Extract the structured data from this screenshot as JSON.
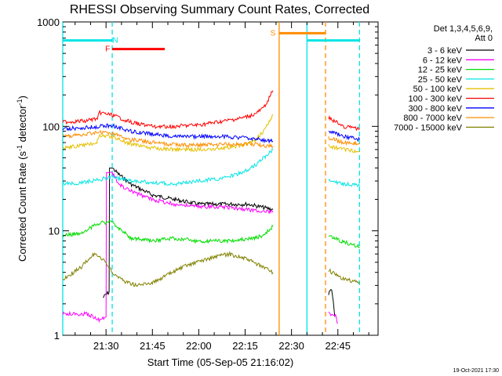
{
  "chart_data": {
    "type": "line",
    "title": "RHESSI Observing Summary Count Rates, Corrected",
    "xlabel": "Start Time (05-Sep-05 21:16:02)",
    "ylabel_main": "Corrected Count Rate (s",
    "ylabel_sup1": "-1",
    "ylabel_mid": " detector",
    "ylabel_sup2": "-1",
    "ylabel_end": ")",
    "yscale": "log",
    "ylim": [
      1,
      1000
    ],
    "xlim_min": [
      1276,
      1378
    ],
    "y_ticks": [
      {
        "v": 1,
        "label": "1"
      },
      {
        "v": 10,
        "label": "10"
      },
      {
        "v": 100,
        "label": "100"
      },
      {
        "v": 1000,
        "label": "1000"
      }
    ],
    "x_ticks": [
      {
        "v": 1290,
        "label": "21:30"
      },
      {
        "v": 1305,
        "label": "21:45"
      },
      {
        "v": 1320,
        "label": "22:00"
      },
      {
        "v": 1335,
        "label": "22:15"
      },
      {
        "v": 1350,
        "label": "22:30"
      },
      {
        "v": 1365,
        "label": "22:45"
      }
    ],
    "legend_header": [
      "Det 1,3,4,5,6,9,",
      "Att 0"
    ],
    "footer_date": "19-Oct-2021 17:30",
    "flags": [
      {
        "label": "N",
        "color": "#00e5e5",
        "segments": [
          [
            1276,
            1292
          ],
          [
            1355,
            1372
          ]
        ],
        "y": 665,
        "letter_at": 1293
      },
      {
        "label": "F",
        "color": "#ff0000",
        "segments": [
          [
            1292,
            1309
          ]
        ],
        "y": 550,
        "letter_at": 1290.5
      },
      {
        "label": "S",
        "color": "#ff8c00",
        "segments": [
          [
            1346,
            1361
          ]
        ],
        "y": 780,
        "letter_at": 1344
      }
    ],
    "vlines": [
      {
        "x": 1276,
        "color": "#00e5e5",
        "dash": false
      },
      {
        "x": 1292,
        "color": "#00e5e5",
        "dash": true
      },
      {
        "x": 1346,
        "color": "#ff8c00",
        "dash": false
      },
      {
        "x": 1355,
        "color": "#00e5e5",
        "dash": false
      },
      {
        "x": 1361,
        "color": "#ff8c00",
        "dash": true
      },
      {
        "x": 1372,
        "color": "#00e5e5",
        "dash": true
      }
    ],
    "series": [
      {
        "name": "3 - 6 keV",
        "color": "#000000",
        "segments": [
          [
            [
              1289,
              2.3
            ],
            [
              1291,
              2.6
            ],
            [
              1292,
              40
            ],
            [
              1294,
              35
            ],
            [
              1298,
              28
            ],
            [
              1305,
              22
            ],
            [
              1312,
              20
            ],
            [
              1320,
              18
            ],
            [
              1328,
              18
            ],
            [
              1336,
              18
            ],
            [
              1344,
              16
            ]
          ],
          [
            [
              1362,
              2.5
            ],
            [
              1363,
              2.8
            ],
            [
              1364,
              1.5
            ]
          ]
        ]
      },
      {
        "name": "6 - 12 keV",
        "color": "#ff00ff",
        "segments": [
          [
            [
              1276,
              1.6
            ],
            [
              1284,
              1.6
            ],
            [
              1288,
              1.4
            ],
            [
              1290,
              1.5
            ],
            [
              1292,
              36
            ],
            [
              1294,
              28
            ],
            [
              1298,
              24
            ],
            [
              1305,
              20
            ],
            [
              1312,
              18
            ],
            [
              1320,
              17
            ],
            [
              1328,
              17
            ],
            [
              1336,
              16
            ],
            [
              1344,
              15
            ]
          ],
          [
            [
              1362,
              1.6
            ],
            [
              1364,
              1.6
            ],
            [
              1365,
              1.3
            ]
          ]
        ]
      },
      {
        "name": "12 - 25 keV",
        "color": "#00dd00",
        "segments": [
          [
            [
              1276,
              9
            ],
            [
              1282,
              9.5
            ],
            [
              1288,
              12
            ],
            [
              1292,
              12
            ],
            [
              1298,
              8.5
            ],
            [
              1305,
              8
            ],
            [
              1312,
              8.5
            ],
            [
              1320,
              8
            ],
            [
              1328,
              8
            ],
            [
              1336,
              8.3
            ],
            [
              1341,
              9
            ],
            [
              1344,
              11
            ]
          ],
          [
            [
              1362,
              9
            ],
            [
              1366,
              8
            ],
            [
              1372,
              7
            ]
          ]
        ]
      },
      {
        "name": "25 - 50 keV",
        "color": "#00e5e5",
        "segments": [
          [
            [
              1276,
              28
            ],
            [
              1282,
              29
            ],
            [
              1288,
              31
            ],
            [
              1292,
              33
            ],
            [
              1298,
              30
            ],
            [
              1305,
              29
            ],
            [
              1312,
              28
            ],
            [
              1320,
              30
            ],
            [
              1328,
              32
            ],
            [
              1334,
              36
            ],
            [
              1338,
              42
            ],
            [
              1341,
              50
            ],
            [
              1344,
              60
            ]
          ],
          [
            [
              1362,
              30
            ],
            [
              1367,
              28
            ],
            [
              1372,
              27
            ]
          ]
        ]
      },
      {
        "name": "50 - 100 keV",
        "color": "#e5c000",
        "segments": [
          [
            [
              1276,
              63
            ],
            [
              1282,
              65
            ],
            [
              1287,
              70
            ],
            [
              1288,
              82
            ],
            [
              1292,
              79
            ],
            [
              1298,
              68
            ],
            [
              1305,
              62
            ],
            [
              1312,
              60
            ],
            [
              1320,
              60
            ],
            [
              1328,
              62
            ],
            [
              1334,
              66
            ],
            [
              1338,
              72
            ],
            [
              1341,
              90
            ],
            [
              1344,
              130
            ]
          ],
          [
            [
              1362,
              65
            ],
            [
              1367,
              60
            ],
            [
              1372,
              57
            ]
          ]
        ]
      },
      {
        "name": "100 - 300 keV",
        "color": "#ff0000",
        "segments": [
          [
            [
              1276,
              110
            ],
            [
              1282,
              112
            ],
            [
              1287,
              118
            ],
            [
              1288,
              135
            ],
            [
              1292,
              128
            ],
            [
              1298,
              110
            ],
            [
              1305,
              100
            ],
            [
              1312,
              100
            ],
            [
              1320,
              103
            ],
            [
              1328,
              112
            ],
            [
              1334,
              120
            ],
            [
              1338,
              130
            ],
            [
              1341,
              150
            ],
            [
              1344,
              220
            ]
          ],
          [
            [
              1362,
              120
            ],
            [
              1367,
              100
            ],
            [
              1372,
              95
            ]
          ]
        ]
      },
      {
        "name": "300 - 800 keV",
        "color": "#0000ff",
        "segments": [
          [
            [
              1276,
              95
            ],
            [
              1282,
              97
            ],
            [
              1288,
              100
            ],
            [
              1292,
              102
            ],
            [
              1298,
              90
            ],
            [
              1305,
              84
            ],
            [
              1312,
              80
            ],
            [
              1320,
              80
            ],
            [
              1328,
              80
            ],
            [
              1334,
              78
            ],
            [
              1338,
              76
            ],
            [
              1344,
              72
            ]
          ],
          [
            [
              1362,
              90
            ],
            [
              1367,
              80
            ],
            [
              1372,
              75
            ]
          ]
        ]
      },
      {
        "name": "800 - 7000 keV",
        "color": "#ff8c00",
        "segments": [
          [
            [
              1276,
              80
            ],
            [
              1282,
              83
            ],
            [
              1288,
              88
            ],
            [
              1292,
              86
            ],
            [
              1298,
              75
            ],
            [
              1305,
              70
            ],
            [
              1312,
              67
            ],
            [
              1320,
              66
            ],
            [
              1328,
              67
            ],
            [
              1334,
              68
            ],
            [
              1338,
              67
            ],
            [
              1344,
              64
            ]
          ],
          [
            [
              1362,
              78
            ],
            [
              1367,
              70
            ],
            [
              1372,
              68
            ]
          ]
        ]
      },
      {
        "name": "7000 - 15000 keV",
        "color": "#808000",
        "segments": [
          [
            [
              1276,
              3.4
            ],
            [
              1282,
              4.5
            ],
            [
              1286,
              6
            ],
            [
              1290,
              5
            ],
            [
              1292,
              4
            ],
            [
              1296,
              3.3
            ],
            [
              1300,
              3
            ],
            [
              1305,
              3.2
            ],
            [
              1310,
              3.8
            ],
            [
              1315,
              4.5
            ],
            [
              1320,
              5.1
            ],
            [
              1325,
              5.6
            ],
            [
              1330,
              6
            ],
            [
              1336,
              5.3
            ],
            [
              1340,
              4.6
            ],
            [
              1344,
              4
            ]
          ],
          [
            [
              1362,
              4.2
            ],
            [
              1366,
              3.5
            ],
            [
              1372,
              3.2
            ]
          ]
        ]
      }
    ]
  }
}
